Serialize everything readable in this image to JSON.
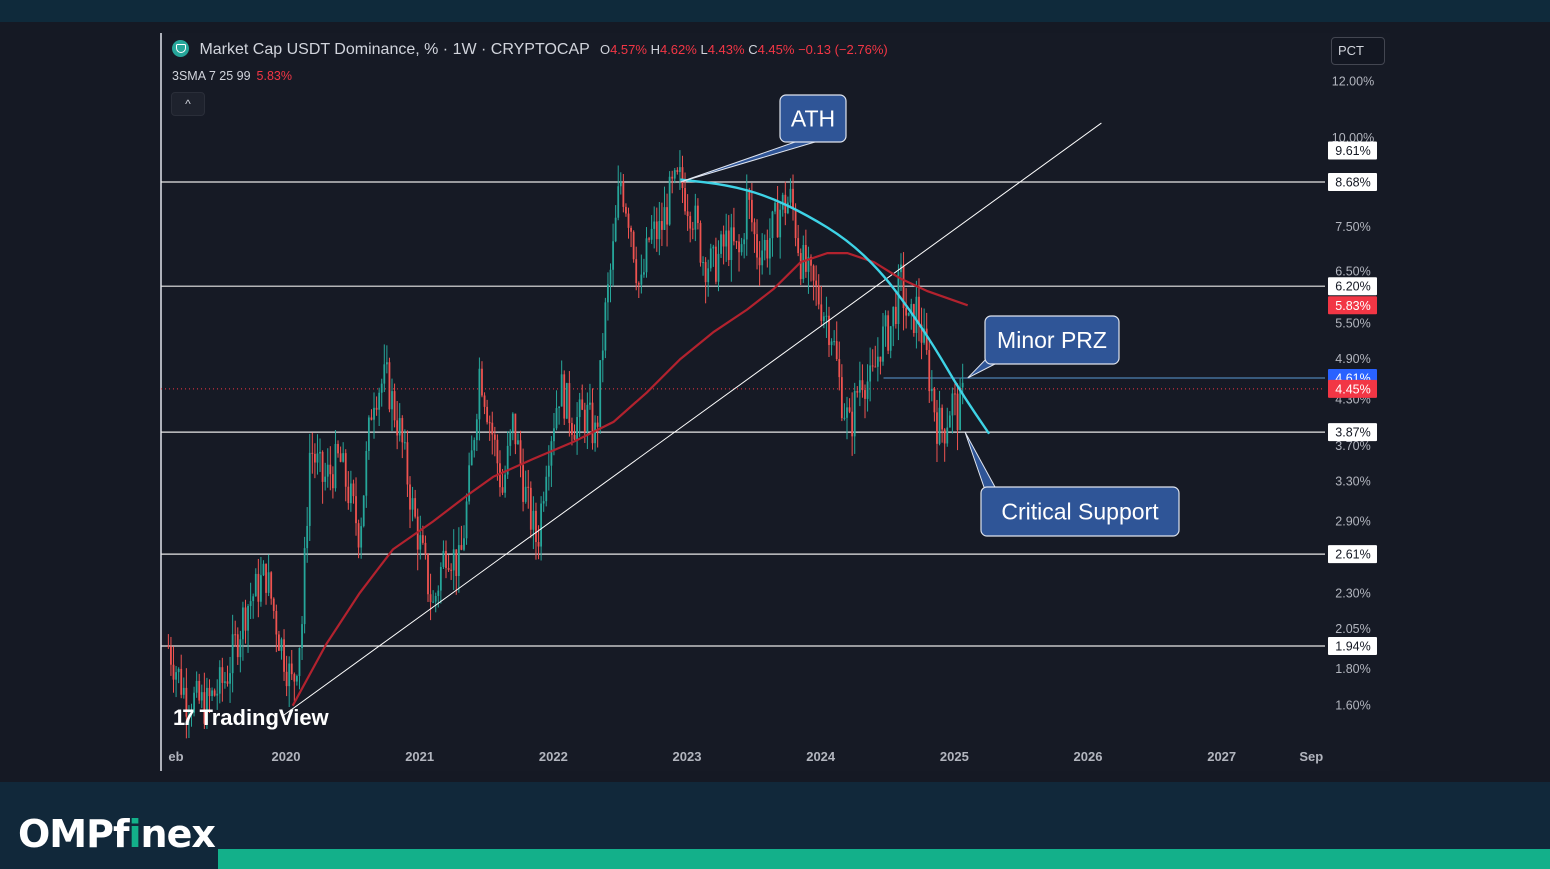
{
  "header": {
    "title": "Market Cap USDT Dominance, % · 1W · CRYPTOCAP",
    "o_label": "O",
    "o_value": "4.57%",
    "h_label": "H",
    "h_value": "4.62%",
    "l_label": "L",
    "l_value": "4.43%",
    "c_label": "C",
    "c_value": "4.45%",
    "change": "−0.13 (−2.76%)",
    "indicator_name": "3SMA 7 25 99",
    "indicator_value": "5.83%",
    "collapse_glyph": "^",
    "scale_button": "PCT"
  },
  "watermark": {
    "mark": "17",
    "text": "TradingView"
  },
  "brand": {
    "part1": "OMPf",
    "part2": "i",
    "part3": "nex"
  },
  "colors": {
    "background": "#161a25",
    "up": "#26a69a",
    "down": "#ef5350",
    "sma": "#b2222e",
    "curve": "#3ed3e6",
    "callout": "#2f5597",
    "accent": "#13b08a"
  },
  "chart_data": {
    "type": "candlestick",
    "timeframe": "1W",
    "y_scale": "log",
    "ylim": [
      1.5,
      12.5
    ],
    "x_tick_labels": [
      "eb",
      "2020",
      "2021",
      "2022",
      "2023",
      "2024",
      "2025",
      "2026",
      "2027",
      "Sep"
    ],
    "x_tick_years": [
      2019.12,
      2020.0,
      2021.0,
      2022.0,
      2023.0,
      2024.0,
      2025.0,
      2026.0,
      2027.0,
      2027.67
    ],
    "y_tick_labels": [
      "12.00%",
      "10.00%",
      "7.50%",
      "6.50%",
      "5.50%",
      "4.90%",
      "4.30%",
      "3.70%",
      "3.30%",
      "2.90%",
      "2.30%",
      "2.05%",
      "1.80%",
      "1.60%"
    ],
    "y_tick_values": [
      12.0,
      10.0,
      7.5,
      6.5,
      5.5,
      4.9,
      4.3,
      3.7,
      3.3,
      2.9,
      2.3,
      2.05,
      1.8,
      1.6
    ],
    "horizontal_levels": [
      {
        "value": 9.61,
        "label": "9.61%",
        "line": false
      },
      {
        "value": 8.68,
        "label": "8.68%",
        "line": true
      },
      {
        "value": 6.2,
        "label": "6.20%",
        "line": true
      },
      {
        "value": 3.87,
        "label": "3.87%",
        "line": true
      },
      {
        "value": 2.61,
        "label": "2.61%",
        "line": true
      },
      {
        "value": 1.94,
        "label": "1.94%",
        "line": true
      }
    ],
    "price_labels": [
      {
        "value": 5.83,
        "label": "5.83%",
        "color": "#f23645"
      },
      {
        "value": 4.61,
        "label": "4.61%",
        "color": "#2962ff"
      },
      {
        "value": 4.45,
        "label": "4.45%",
        "color": "#f23645"
      }
    ],
    "last_price": 4.45,
    "minor_prz_level": 4.61,
    "weekly_closes": [
      [
        2019.12,
        1.94
      ],
      [
        2019.25,
        1.65
      ],
      [
        2019.4,
        1.6
      ],
      [
        2019.55,
        1.75
      ],
      [
        2019.7,
        2.2
      ],
      [
        2019.85,
        2.45
      ],
      [
        2019.95,
        2.0
      ],
      [
        2020.05,
        1.7
      ],
      [
        2020.12,
        2.1
      ],
      [
        2020.18,
        3.7
      ],
      [
        2020.28,
        3.3
      ],
      [
        2020.4,
        3.55
      ],
      [
        2020.55,
        2.8
      ],
      [
        2020.65,
        4.4
      ],
      [
        2020.75,
        4.6
      ],
      [
        2020.85,
        3.9
      ],
      [
        2020.95,
        3.0
      ],
      [
        2021.1,
        2.2
      ],
      [
        2021.2,
        2.7
      ],
      [
        2021.3,
        2.5
      ],
      [
        2021.38,
        3.4
      ],
      [
        2021.45,
        4.8
      ],
      [
        2021.55,
        3.8
      ],
      [
        2021.62,
        3.2
      ],
      [
        2021.7,
        4.0
      ],
      [
        2021.8,
        3.1
      ],
      [
        2021.88,
        2.7
      ],
      [
        2021.95,
        3.6
      ],
      [
        2022.05,
        4.5
      ],
      [
        2022.15,
        4.0
      ],
      [
        2022.25,
        4.1
      ],
      [
        2022.32,
        3.8
      ],
      [
        2022.38,
        5.5
      ],
      [
        2022.45,
        7.0
      ],
      [
        2022.5,
        8.8
      ],
      [
        2022.58,
        7.6
      ],
      [
        2022.65,
        6.0
      ],
      [
        2022.72,
        7.3
      ],
      [
        2022.8,
        7.4
      ],
      [
        2022.88,
        8.4
      ],
      [
        2022.95,
        8.7
      ],
      [
        2023.05,
        7.8
      ],
      [
        2023.12,
        6.8
      ],
      [
        2023.2,
        6.6
      ],
      [
        2023.3,
        7.2
      ],
      [
        2023.4,
        6.8
      ],
      [
        2023.45,
        8.3
      ],
      [
        2023.52,
        7.0
      ],
      [
        2023.6,
        7.1
      ],
      [
        2023.7,
        8.0
      ],
      [
        2023.78,
        8.2
      ],
      [
        2023.85,
        6.8
      ],
      [
        2023.92,
        6.3
      ],
      [
        2024.0,
        5.9
      ],
      [
        2024.08,
        5.4
      ],
      [
        2024.15,
        4.4
      ],
      [
        2024.22,
        3.9
      ],
      [
        2024.3,
        4.7
      ],
      [
        2024.38,
        4.5
      ],
      [
        2024.45,
        5.2
      ],
      [
        2024.52,
        5.4
      ],
      [
        2024.6,
        6.3
      ],
      [
        2024.66,
        5.4
      ],
      [
        2024.72,
        5.8
      ],
      [
        2024.8,
        4.8
      ],
      [
        2024.87,
        4.0
      ],
      [
        2024.92,
        3.9
      ],
      [
        2024.98,
        4.3
      ],
      [
        2025.03,
        4.1
      ],
      [
        2025.08,
        4.45
      ]
    ],
    "sma_99": [
      [
        2020.05,
        1.6
      ],
      [
        2020.3,
        1.95
      ],
      [
        2020.55,
        2.3
      ],
      [
        2020.8,
        2.65
      ],
      [
        2021.1,
        2.9
      ],
      [
        2021.35,
        3.15
      ],
      [
        2021.55,
        3.35
      ],
      [
        2021.85,
        3.55
      ],
      [
        2022.15,
        3.75
      ],
      [
        2022.45,
        4.0
      ],
      [
        2022.7,
        4.4
      ],
      [
        2022.95,
        4.9
      ],
      [
        2023.2,
        5.35
      ],
      [
        2023.45,
        5.75
      ],
      [
        2023.65,
        6.15
      ],
      [
        2023.85,
        6.7
      ],
      [
        2024.05,
        6.9
      ],
      [
        2024.2,
        6.9
      ],
      [
        2024.4,
        6.7
      ],
      [
        2024.6,
        6.35
      ],
      [
        2024.8,
        6.1
      ],
      [
        2025.1,
        5.83
      ]
    ],
    "trendline": {
      "from": [
        2019.98,
        1.55
      ],
      "to": [
        2026.1,
        10.5
      ]
    },
    "decline_curve": [
      [
        2022.95,
        8.75
      ],
      [
        2023.3,
        8.6
      ],
      [
        2023.6,
        8.3
      ],
      [
        2023.9,
        7.8
      ],
      [
        2024.2,
        7.2
      ],
      [
        2024.45,
        6.5
      ],
      [
        2024.65,
        5.8
      ],
      [
        2024.85,
        5.1
      ],
      [
        2025.05,
        4.4
      ],
      [
        2025.26,
        3.85
      ]
    ],
    "annotations": [
      {
        "text": "ATH",
        "target": [
          2022.95,
          8.68
        ]
      },
      {
        "text": "Minor PRZ",
        "target": [
          2025.1,
          4.61
        ]
      },
      {
        "text": "Critical Support",
        "target": [
          2025.08,
          3.87
        ]
      }
    ]
  }
}
